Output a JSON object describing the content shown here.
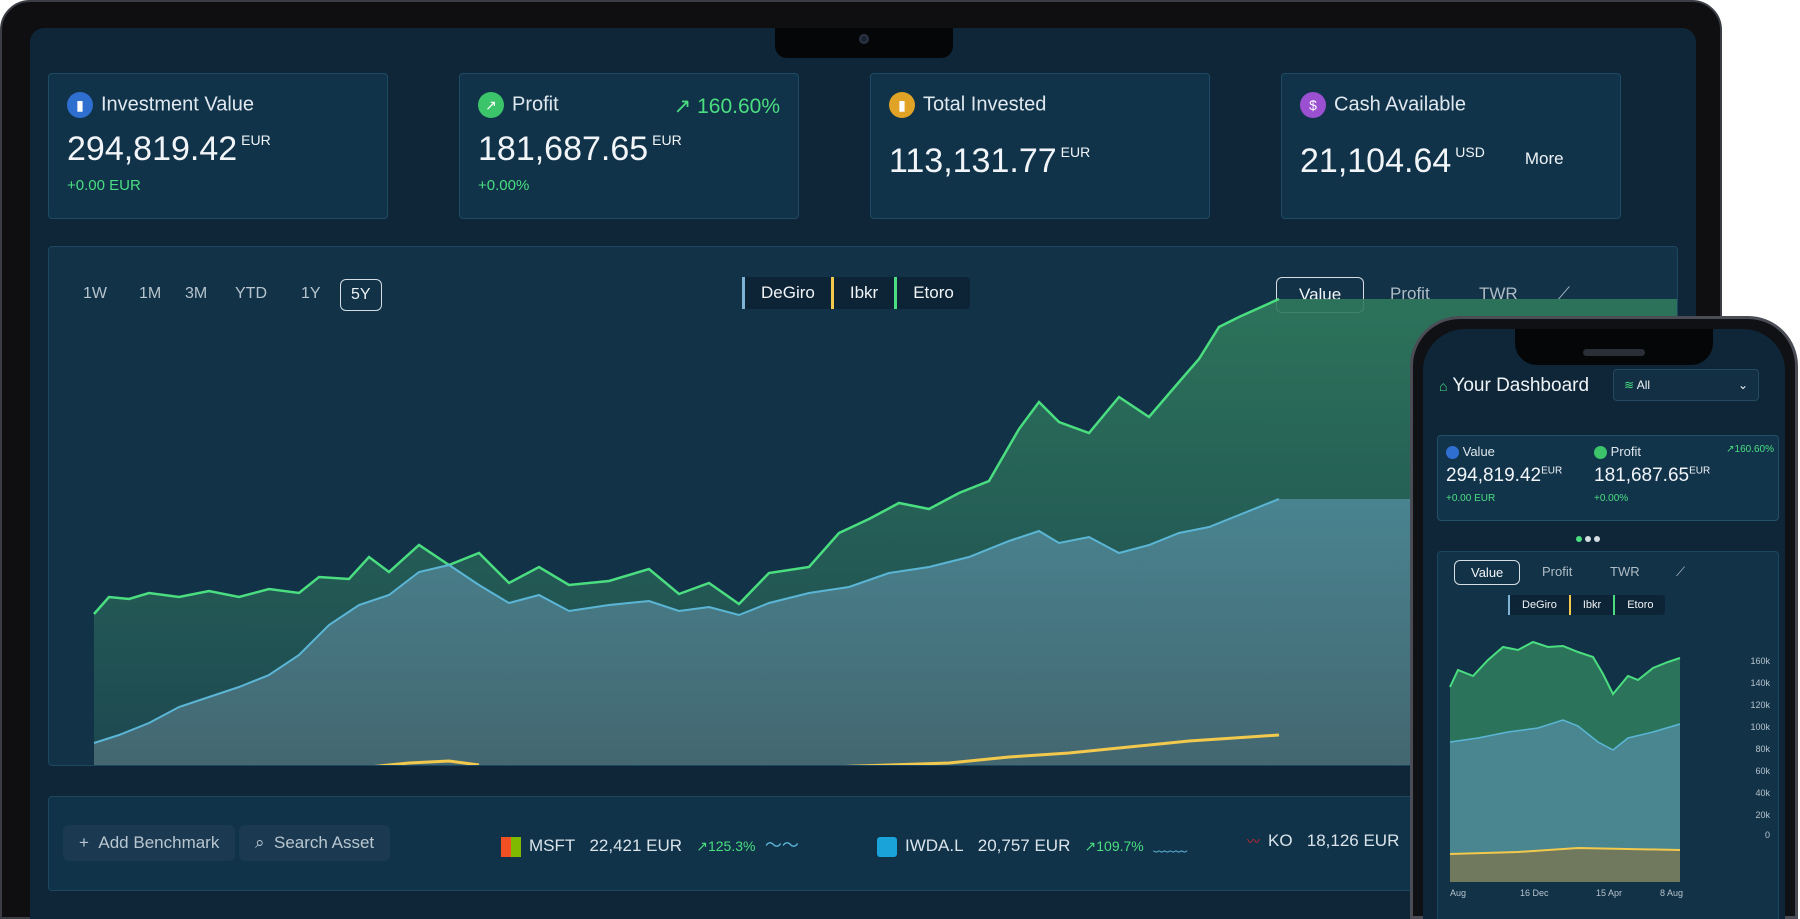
{
  "cards": [
    {
      "label": "Investment Value",
      "value": "294,819.42",
      "currency": "EUR",
      "change": "+0.00",
      "change_currency": "EUR",
      "icon": "bar-chart-icon",
      "icon_color": "#2f6fd0"
    },
    {
      "label": "Profit",
      "value": "181,687.65",
      "currency": "EUR",
      "change": "+0.00%",
      "pct": "160.60%",
      "icon": "trend-up-icon",
      "icon_color": "#3cc46b"
    },
    {
      "label": "Total Invested",
      "value": "113,131.77",
      "currency": "EUR",
      "icon": "bar-chart-icon",
      "icon_color": "#e0a326"
    },
    {
      "label": "Cash Available",
      "value": "21,104.64",
      "currency": "USD",
      "more": "More",
      "icon": "dollar-icon",
      "icon_color": "#9b4fd1"
    }
  ],
  "ranges": [
    "1W",
    "1M",
    "3M",
    "YTD",
    "1Y",
    "5Y"
  ],
  "active_range": "5Y",
  "brokers": [
    "DeGiro",
    "Ibkr",
    "Etoro"
  ],
  "metric_tabs": [
    "Value",
    "Profit",
    "TWR"
  ],
  "active_metric": "Value",
  "bottom": {
    "add_benchmark": "Add Benchmark",
    "search_asset": "Search Asset",
    "assets": [
      {
        "ticker": "MSFT",
        "value": "22,421 EUR",
        "change": "125.3%"
      },
      {
        "ticker": "IWDA.L",
        "value": "20,757 EUR",
        "change": "109.7%"
      },
      {
        "ticker": "KO",
        "value": "18,126 EUR"
      }
    ]
  },
  "phone": {
    "title": "Your Dashboard",
    "selector": "All",
    "value_label": "Value",
    "value": "294,819.42",
    "value_currency": "EUR",
    "value_change": "+0.00",
    "value_change_currency": "EUR",
    "profit_label": "Profit",
    "profit_pct": "160.60%",
    "profit": "181,687.65",
    "profit_currency": "EUR",
    "profit_change": "+0.00%",
    "tabs": [
      "Value",
      "Profit",
      "TWR"
    ],
    "brokers": [
      "DeGiro",
      "Ibkr",
      "Etoro"
    ],
    "y_ticks": [
      "160k",
      "140k",
      "120k",
      "100k",
      "80k",
      "60k",
      "40k",
      "20k",
      "0"
    ],
    "x_ticks": [
      "Aug",
      "16 Dec",
      "15 Apr",
      "8 Aug"
    ]
  },
  "colors": {
    "green": "#4ade80",
    "blue_line": "#5bb6d6",
    "yellow": "#f2c94c",
    "bg": "#0e2638"
  }
}
